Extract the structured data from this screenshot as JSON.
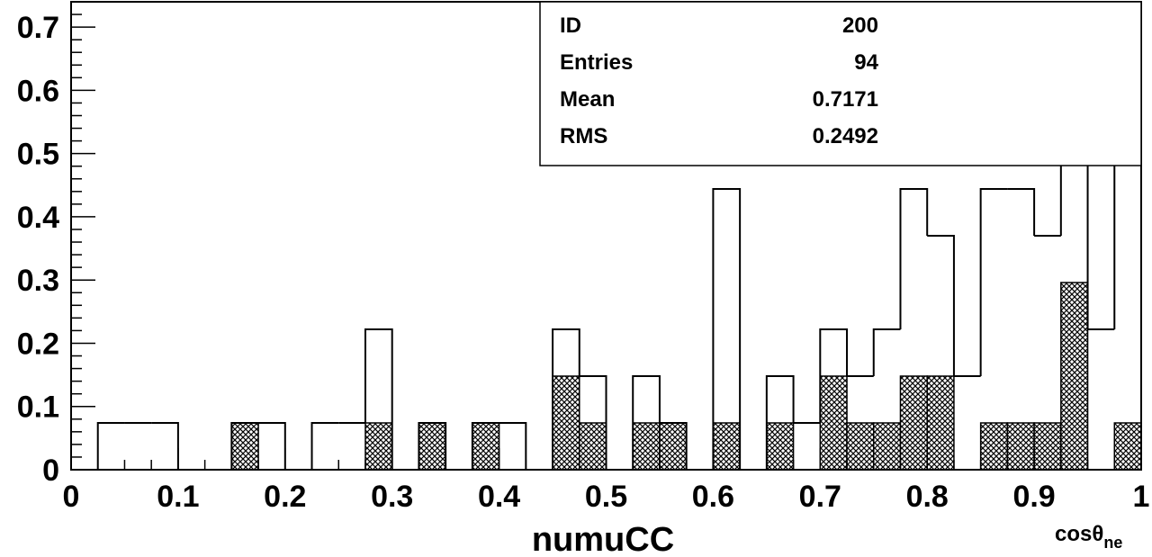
{
  "chart_data": {
    "type": "histogram",
    "xlabel": "numuCC",
    "corner_label": {
      "main": "cosθ",
      "sub": "ne"
    },
    "xlim": [
      0,
      1
    ],
    "ylim": [
      0,
      0.74
    ],
    "bin_width": 0.025,
    "x_ticks": [
      "0",
      "0.1",
      "0.2",
      "0.3",
      "0.4",
      "0.5",
      "0.6",
      "0.7",
      "0.8",
      "0.9",
      "1"
    ],
    "y_ticks": [
      "0",
      "0.1",
      "0.2",
      "0.3",
      "0.4",
      "0.5",
      "0.6",
      "0.7"
    ],
    "y_tick_values": [
      0,
      0.1,
      0.2,
      0.3,
      0.4,
      0.5,
      0.6,
      0.7
    ],
    "series": [
      {
        "style": "outline",
        "bin_low_edges": [
          0.025,
          0.05,
          0.075,
          0.1,
          0.125,
          0.15,
          0.175,
          0.2,
          0.225,
          0.25,
          0.275,
          0.3,
          0.325,
          0.35,
          0.375,
          0.4,
          0.425,
          0.45,
          0.475,
          0.5,
          0.525,
          0.55,
          0.575,
          0.6,
          0.625,
          0.65,
          0.675,
          0.7,
          0.725,
          0.75,
          0.775,
          0.8,
          0.825,
          0.85,
          0.875,
          0.9,
          0.925,
          0.95,
          0.975
        ],
        "values": [
          0.074,
          0.074,
          0.074,
          0,
          0,
          0.074,
          0.074,
          0,
          0.074,
          0.074,
          0.222,
          0,
          0.074,
          0,
          0.074,
          0.074,
          0,
          0.222,
          0.148,
          0,
          0.148,
          0.074,
          0,
          0.444,
          0,
          0.148,
          0.074,
          0.222,
          0.148,
          0.222,
          0.444,
          0.37,
          0.148,
          0.444,
          0.444,
          0.37,
          0.667,
          0.222,
          0.519
        ]
      },
      {
        "style": "hatched",
        "bin_low_edges": [
          0.15,
          0.275,
          0.325,
          0.375,
          0.45,
          0.475,
          0.525,
          0.55,
          0.6,
          0.65,
          0.7,
          0.725,
          0.75,
          0.775,
          0.8,
          0.85,
          0.875,
          0.9,
          0.925,
          0.975
        ],
        "values": [
          0.074,
          0.074,
          0.074,
          0.074,
          0.148,
          0.074,
          0.074,
          0.074,
          0.074,
          0.074,
          0.148,
          0.074,
          0.074,
          0.148,
          0.148,
          0.074,
          0.074,
          0.074,
          0.296,
          0.074
        ]
      }
    ],
    "stats_box": [
      {
        "label": "ID",
        "value": "200"
      },
      {
        "label": "Entries",
        "value": "94"
      },
      {
        "label": "Mean",
        "value": "0.7171"
      },
      {
        "label": "RMS",
        "value": "0.2492"
      }
    ]
  }
}
